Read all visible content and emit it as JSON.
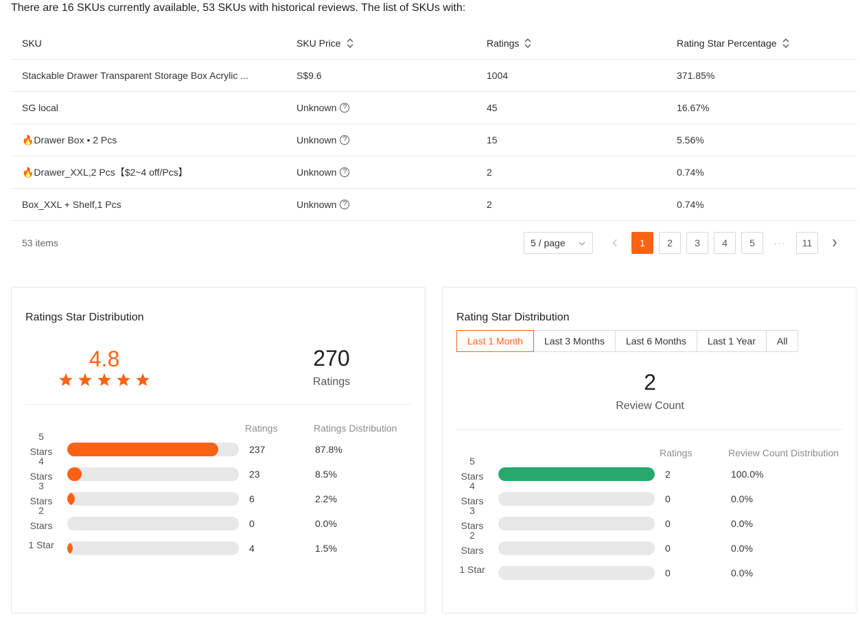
{
  "intro_text": "There are 16 SKUs currently available, 53 SKUs with historical reviews. The list of SKUs with:",
  "table": {
    "headers": {
      "sku": "SKU",
      "price": "SKU Price",
      "ratings": "Ratings",
      "pct": "Rating Star Percentage"
    },
    "rows": [
      {
        "sku": "Stackable Drawer Transparent Storage Box Acrylic ...",
        "price": "S$9.6",
        "ratings": "1004",
        "pct": "371.85%",
        "price_help": false
      },
      {
        "sku": "SG local",
        "price": "Unknown",
        "ratings": "45",
        "pct": "16.67%",
        "price_help": true
      },
      {
        "sku": "🔥Drawer Box • 2 Pcs",
        "price": "Unknown",
        "ratings": "15",
        "pct": "5.56%",
        "price_help": true
      },
      {
        "sku": "🔥Drawer_XXL,2 Pcs【$2~4 off/Pcs】",
        "price": "Unknown",
        "ratings": "2",
        "pct": "0.74%",
        "price_help": true
      },
      {
        "sku": "Box_XXL + Shelf,1 Pcs",
        "price": "Unknown",
        "ratings": "2",
        "pct": "0.74%",
        "price_help": true
      }
    ]
  },
  "pagination": {
    "items_total": "53 items",
    "page_size": "5 / page",
    "pages": [
      "1",
      "2",
      "3",
      "4",
      "5"
    ],
    "ellipsis": "···",
    "last_page": "11",
    "active_page": "1"
  },
  "left_card": {
    "title": "Ratings Star Distribution",
    "avg_rating": "4.8",
    "star_count": 5,
    "total": "270",
    "total_label": "Ratings",
    "col_ratings": "Ratings",
    "col_distribution": "Ratings Distribution",
    "accent": "#fa6314",
    "rows": [
      {
        "l1": "5",
        "l2": "Stars",
        "count": "237",
        "pct": "87.8%",
        "fraction": 0.878
      },
      {
        "l1": "4",
        "l2": "Stars",
        "count": "23",
        "pct": "8.5%",
        "fraction": 0.085
      },
      {
        "l1": "3",
        "l2": "Stars",
        "count": "6",
        "pct": "2.2%",
        "fraction": 0.022
      },
      {
        "l1": "2",
        "l2": "Stars",
        "count": "0",
        "pct": "0.0%",
        "fraction": 0
      },
      {
        "l1": "1 Star",
        "l2": "",
        "count": "4",
        "pct": "1.5%",
        "fraction": 0.015
      }
    ]
  },
  "right_card": {
    "title": "Rating Star Distribution",
    "tabs": [
      "Last 1 Month",
      "Last 3 Months",
      "Last 6 Months",
      "Last 1 Year",
      "All"
    ],
    "review_count": "2",
    "review_label": "Review Count",
    "col_ratings": "Ratings",
    "col_distribution": "Review Count Distribution",
    "accent": "#27a96d",
    "rows": [
      {
        "l1": "5",
        "l2": "Stars",
        "count": "2",
        "pct": "100.0%",
        "fraction": 1
      },
      {
        "l1": "4",
        "l2": "Stars",
        "count": "0",
        "pct": "0.0%",
        "fraction": 0
      },
      {
        "l1": "3",
        "l2": "Stars",
        "count": "0",
        "pct": "0.0%",
        "fraction": 0
      },
      {
        "l1": "2",
        "l2": "Stars",
        "count": "0",
        "pct": "0.0%",
        "fraction": 0
      },
      {
        "l1": "1 Star",
        "l2": "",
        "count": "0",
        "pct": "0.0%",
        "fraction": 0
      }
    ]
  }
}
